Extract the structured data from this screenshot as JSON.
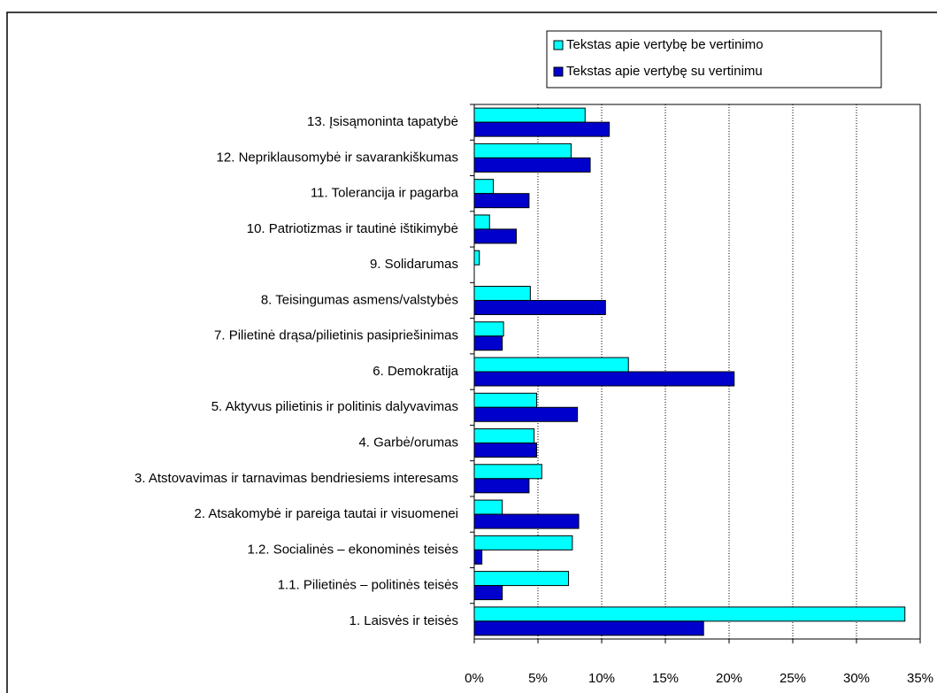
{
  "chart_data": {
    "type": "hbar",
    "categories": [
      "1. Laisvės ir teisės",
      "1.1. Pilietinės – politinės teisės",
      "1.2. Socialinės – ekonominės teisės",
      "2. Atsakomybė ir pareiga tautai ir visuomenei",
      "3. Atstovavimas ir tarnavimas bendriesiems interesams",
      "4. Garbė/orumas",
      "5. Aktyvus pilietinis ir politinis dalyvavimas",
      "6. Demokratija",
      "7. Pilietinė drąsa/pilietinis pasipriešinimas",
      "8. Teisingumas asmens/valstybės",
      "9. Solidarumas",
      "10. Patriotizmas ir tautinė ištikimybė",
      "11. Tolerancija ir pagarba",
      "12. Nepriklausomybė ir savarankiškumas",
      "13. Įsisąmoninta tapatybė"
    ],
    "series": [
      {
        "name": "Tekstas apie vertybę be vertinimo",
        "color": "#00ffff",
        "values": [
          33.8,
          7.4,
          7.7,
          2.2,
          5.3,
          4.7,
          4.9,
          12.1,
          2.3,
          4.4,
          0.4,
          1.2,
          1.5,
          7.6,
          8.7
        ]
      },
      {
        "name": "Tekstas apie vertybę su vertinimu",
        "color": "#0000cc",
        "values": [
          18.0,
          2.2,
          0.6,
          8.2,
          4.3,
          4.9,
          8.1,
          20.4,
          2.2,
          10.3,
          0,
          3.3,
          4.3,
          9.1,
          10.6
        ]
      }
    ],
    "xlim": [
      0,
      35
    ],
    "xticks": [
      {
        "value": 0,
        "label": "0%"
      },
      {
        "value": 5,
        "label": "5%"
      },
      {
        "value": 10,
        "label": "10%"
      },
      {
        "value": 15,
        "label": "15%"
      },
      {
        "value": 20,
        "label": "20%"
      },
      {
        "value": 25,
        "label": "25%"
      },
      {
        "value": 30,
        "label": "30%"
      },
      {
        "value": 35,
        "label": "35%"
      }
    ],
    "grid": true,
    "legend": "top-right"
  }
}
